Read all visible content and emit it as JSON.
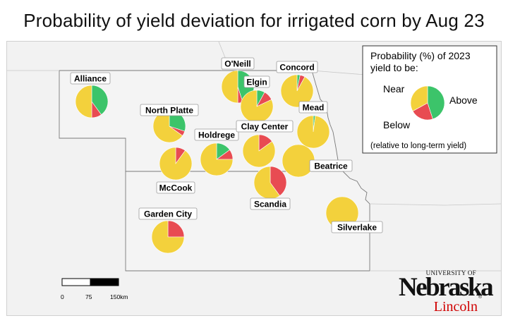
{
  "title": "Probability of yield deviation for irrigated corn by Aug 23",
  "colors": {
    "above": "#3cc46a",
    "below": "#e84b52",
    "near": "#f3d13c",
    "state_fill": "#f4f4f4",
    "border": "#7a7a7a"
  },
  "legend": {
    "heading_line1": "Probability (%) of 2023",
    "heading_line2": "yield to be:",
    "near": "Near",
    "above": "Above",
    "below": "Below",
    "note": "(relative to long-term yield)"
  },
  "scalebar": {
    "ticks": [
      "0",
      "75",
      "150km"
    ]
  },
  "logo": {
    "university": "UNIVERSITY OF",
    "name": "Nebraska",
    "campus": "Lincoln",
    "reg": "®"
  },
  "chart_data": {
    "type": "pie",
    "series_order": [
      "above",
      "below",
      "near"
    ],
    "sites": [
      {
        "name": "Alliance",
        "above": 40,
        "below": 10,
        "near": 50
      },
      {
        "name": "O'Neill",
        "above": 45,
        "below": 5,
        "near": 50
      },
      {
        "name": "Concord",
        "above": 3,
        "below": 5,
        "near": 92
      },
      {
        "name": "Elgin",
        "above": 8,
        "below": 10,
        "near": 82
      },
      {
        "name": "North Platte",
        "above": 30,
        "below": 5,
        "near": 65
      },
      {
        "name": "Mead",
        "above": 2,
        "below": 0,
        "near": 98
      },
      {
        "name": "Holdrege",
        "above": 15,
        "below": 10,
        "near": 75
      },
      {
        "name": "Clay Center",
        "above": 0,
        "below": 15,
        "near": 85
      },
      {
        "name": "McCook",
        "above": 0,
        "below": 10,
        "near": 90
      },
      {
        "name": "Beatrice",
        "above": 0,
        "below": 0,
        "near": 100
      },
      {
        "name": "Scandia",
        "above": 0,
        "below": 40,
        "near": 60
      },
      {
        "name": "Garden City",
        "above": 0,
        "below": 25,
        "near": 75
      },
      {
        "name": "Silverlake",
        "above": 0,
        "below": 0,
        "near": 100
      }
    ]
  }
}
